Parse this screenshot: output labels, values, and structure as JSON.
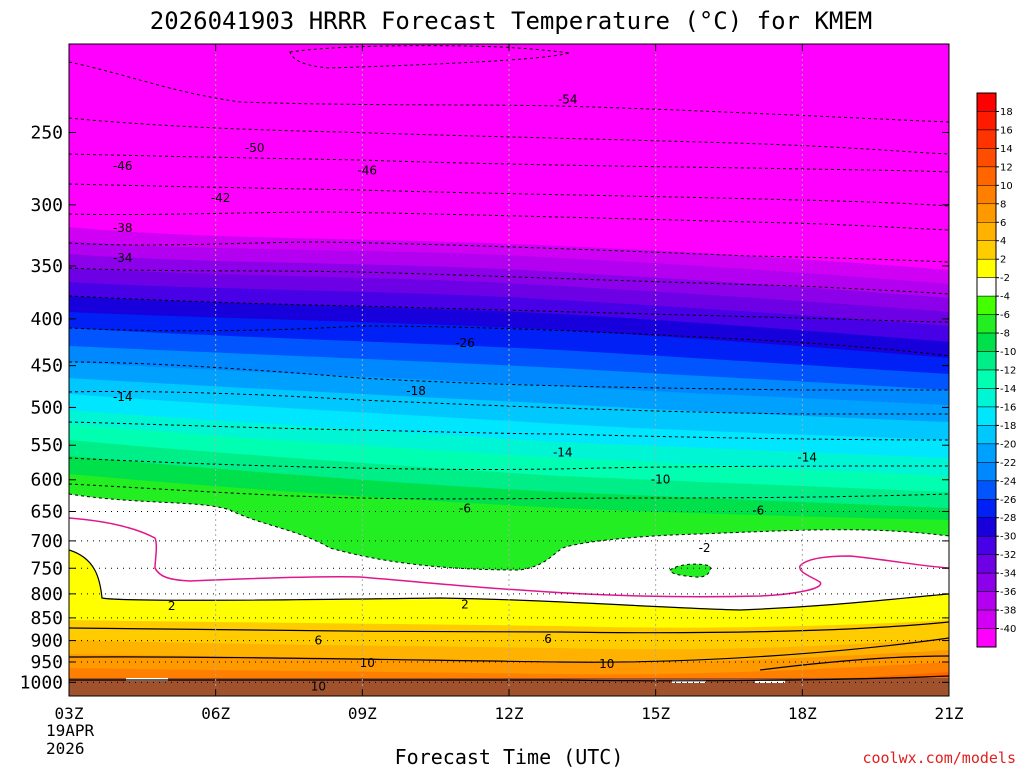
{
  "chart_data": {
    "type": "heatmap",
    "title": "2026041903 HRRR Forecast Temperature (°C) for KMEM",
    "xlabel": "Forecast Time (UTC)",
    "ylabel": "",
    "x_ticks": [
      "03Z",
      "06Z",
      "09Z",
      "12Z",
      "15Z",
      "18Z",
      "21Z"
    ],
    "x_date": [
      "19APR",
      "2026"
    ],
    "x_range_hours": [
      3,
      21
    ],
    "y_ticks": [
      250,
      300,
      350,
      400,
      450,
      500,
      550,
      600,
      650,
      700,
      750,
      800,
      850,
      900,
      950,
      1000
    ],
    "y_range": [
      200,
      1035
    ],
    "y_scale": "log-pressure",
    "colorbar": {
      "labels": [
        "18",
        "16",
        "14",
        "12",
        "10",
        "8",
        "6",
        "4",
        "2",
        "-2",
        "-4",
        "-6",
        "-8",
        "-10",
        "-12",
        "-14",
        "-16",
        "-18",
        "-20",
        "-22",
        "-24",
        "-26",
        "-28",
        "-30",
        "-32",
        "-34",
        "-36",
        "-38",
        "-40"
      ],
      "colors": [
        "#ff1a00",
        "#ff3300",
        "#ff4d00",
        "#ff6600",
        "#ff8000",
        "#ff9900",
        "#ffb300",
        "#ffcc00",
        "#ffff00",
        "#ffffff",
        "#44ff00",
        "#22ee22",
        "#00e04a",
        "#00ee88",
        "#00ffb0",
        "#00f5d5",
        "#00e6ff",
        "#00c8ff",
        "#00a0ff",
        "#0088ff",
        "#0055ff",
        "#0020f5",
        "#1800dc",
        "#4800e6",
        "#6e00e6",
        "#8c00ea",
        "#b400f0",
        "#d000f4",
        "#ff00ff"
      ]
    },
    "contour_labels": [
      {
        "text": "-54",
        "x": 13.2,
        "p": 230
      },
      {
        "text": "-50",
        "x": 6.8,
        "p": 260
      },
      {
        "text": "-46",
        "x": 4.1,
        "p": 272
      },
      {
        "text": "-46",
        "x": 9.1,
        "p": 275
      },
      {
        "text": "-42",
        "x": 6.1,
        "p": 295
      },
      {
        "text": "-38",
        "x": 4.1,
        "p": 318
      },
      {
        "text": "-34",
        "x": 4.1,
        "p": 343
      },
      {
        "text": "-26",
        "x": 11.1,
        "p": 425
      },
      {
        "text": "-18",
        "x": 10.1,
        "p": 480
      },
      {
        "text": "-14",
        "x": 4.1,
        "p": 487
      },
      {
        "text": "-14",
        "x": 13.1,
        "p": 560
      },
      {
        "text": "-14",
        "x": 18.1,
        "p": 567
      },
      {
        "text": "-10",
        "x": 15.1,
        "p": 600
      },
      {
        "text": "-6",
        "x": 11.1,
        "p": 645
      },
      {
        "text": "-6",
        "x": 17.1,
        "p": 648
      },
      {
        "text": "-2",
        "x": 16.0,
        "p": 713
      },
      {
        "text": "2",
        "x": 5.1,
        "p": 825
      },
      {
        "text": "2",
        "x": 11.1,
        "p": 822
      },
      {
        "text": "6",
        "x": 8.1,
        "p": 900
      },
      {
        "text": "6",
        "x": 12.8,
        "p": 897
      },
      {
        "text": "10",
        "x": 9.1,
        "p": 952
      },
      {
        "text": "10",
        "x": 14.0,
        "p": 955
      },
      {
        "text": "10",
        "x": 8.1,
        "p": 1010
      }
    ]
  },
  "credit": "coolwx.com/models"
}
